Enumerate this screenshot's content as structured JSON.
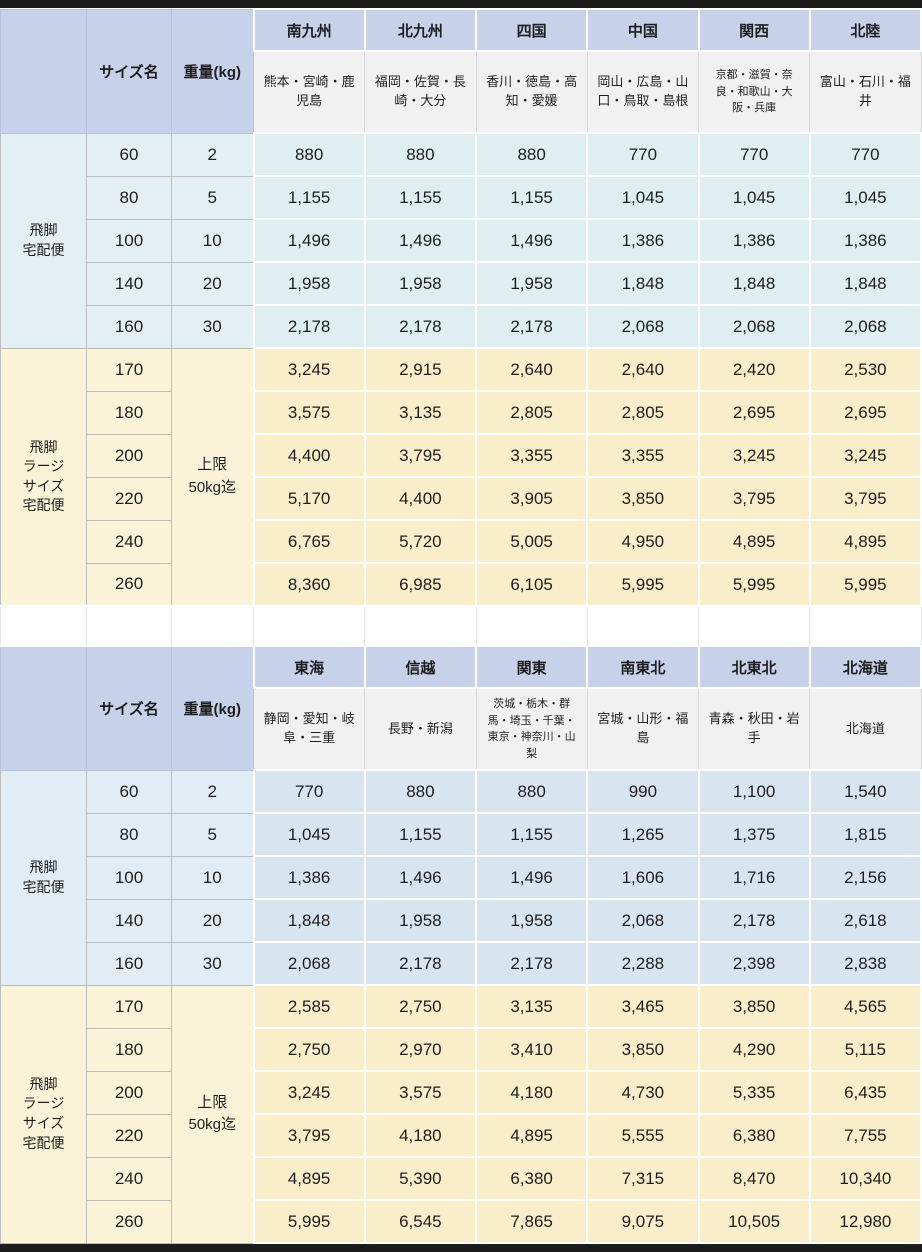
{
  "page": {
    "top_bar_color": "#1b1b1b",
    "bottom_bar_color": "#1b1b1b",
    "header_bg": "#c7d1ea",
    "prefecture_bg": "#f1f1f1"
  },
  "column_headers": {
    "size_label": "サイズ名",
    "weight_label": "重量(kg)"
  },
  "tables": [
    {
      "regions": [
        {
          "name": "南九州",
          "prefectures": "熊本・宮崎・鹿児島"
        },
        {
          "name": "北九州",
          "prefectures": "福岡・佐賀・長崎・大分"
        },
        {
          "name": "四国",
          "prefectures": "香川・徳島・高知・愛媛"
        },
        {
          "name": "中国",
          "prefectures": "岡山・広島・山口・鳥取・島根"
        },
        {
          "name": "関西",
          "prefectures": "京都・滋賀・奈良・和歌山・大阪・兵庫"
        },
        {
          "name": "北陸",
          "prefectures": "富山・石川・福井"
        }
      ],
      "groups": [
        {
          "service": "飛脚\n宅配便",
          "left_bg": "#e4eff4",
          "value_bg": "#deeef1",
          "rows": [
            {
              "size": "60",
              "weight": "2",
              "values": [
                "880",
                "880",
                "880",
                "770",
                "770",
                "770"
              ]
            },
            {
              "size": "80",
              "weight": "5",
              "values": [
                "1,155",
                "1,155",
                "1,155",
                "1,045",
                "1,045",
                "1,045"
              ]
            },
            {
              "size": "100",
              "weight": "10",
              "values": [
                "1,496",
                "1,496",
                "1,496",
                "1,386",
                "1,386",
                "1,386"
              ]
            },
            {
              "size": "140",
              "weight": "20",
              "values": [
                "1,958",
                "1,958",
                "1,958",
                "1,848",
                "1,848",
                "1,848"
              ]
            },
            {
              "size": "160",
              "weight": "30",
              "values": [
                "2,178",
                "2,178",
                "2,178",
                "2,068",
                "2,068",
                "2,068"
              ]
            }
          ]
        },
        {
          "service": "飛脚\nラージ\nサイズ\n宅配便",
          "weight_merged": "上限\n50kg迄",
          "left_bg": "#fbf3d8",
          "value_bg": "#f9eec9",
          "rows": [
            {
              "size": "170",
              "values": [
                "3,245",
                "2,915",
                "2,640",
                "2,640",
                "2,420",
                "2,530"
              ]
            },
            {
              "size": "180",
              "values": [
                "3,575",
                "3,135",
                "2,805",
                "2,805",
                "2,695",
                "2,695"
              ]
            },
            {
              "size": "200",
              "values": [
                "4,400",
                "3,795",
                "3,355",
                "3,355",
                "3,245",
                "3,245"
              ]
            },
            {
              "size": "220",
              "values": [
                "5,170",
                "4,400",
                "3,905",
                "3,850",
                "3,795",
                "3,795"
              ]
            },
            {
              "size": "240",
              "values": [
                "6,765",
                "5,720",
                "5,005",
                "4,950",
                "4,895",
                "4,895"
              ]
            },
            {
              "size": "260",
              "values": [
                "8,360",
                "6,985",
                "6,105",
                "5,995",
                "5,995",
                "5,995"
              ]
            }
          ]
        }
      ]
    },
    {
      "regions": [
        {
          "name": "東海",
          "prefectures": "静岡・愛知・岐阜・三重"
        },
        {
          "name": "信越",
          "prefectures": "長野・新潟"
        },
        {
          "name": "関東",
          "prefectures": "茨城・栃木・群馬・埼玉・千葉・東京・神奈川・山梨"
        },
        {
          "name": "南東北",
          "prefectures": "宮城・山形・福島"
        },
        {
          "name": "北東北",
          "prefectures": "青森・秋田・岩手"
        },
        {
          "name": "北海道",
          "prefectures": "北海道"
        }
      ],
      "groups": [
        {
          "service": "飛脚\n宅配便",
          "left_bg": "#e2ecf5",
          "value_bg": "#d9e4f1",
          "rows": [
            {
              "size": "60",
              "weight": "2",
              "values": [
                "770",
                "880",
                "880",
                "990",
                "1,100",
                "1,540"
              ]
            },
            {
              "size": "80",
              "weight": "5",
              "values": [
                "1,045",
                "1,155",
                "1,155",
                "1,265",
                "1,375",
                "1,815"
              ]
            },
            {
              "size": "100",
              "weight": "10",
              "values": [
                "1,386",
                "1,496",
                "1,496",
                "1,606",
                "1,716",
                "2,156"
              ]
            },
            {
              "size": "140",
              "weight": "20",
              "values": [
                "1,848",
                "1,958",
                "1,958",
                "2,068",
                "2,178",
                "2,618"
              ]
            },
            {
              "size": "160",
              "weight": "30",
              "values": [
                "2,068",
                "2,178",
                "2,178",
                "2,288",
                "2,398",
                "2,838"
              ]
            }
          ]
        },
        {
          "service": "飛脚\nラージ\nサイズ\n宅配便",
          "weight_merged": "上限\n50kg迄",
          "left_bg": "#fbf3d8",
          "value_bg": "#f9eec9",
          "rows": [
            {
              "size": "170",
              "values": [
                "2,585",
                "2,750",
                "3,135",
                "3,465",
                "3,850",
                "4,565"
              ]
            },
            {
              "size": "180",
              "values": [
                "2,750",
                "2,970",
                "3,410",
                "3,850",
                "4,290",
                "5,115"
              ]
            },
            {
              "size": "200",
              "values": [
                "3,245",
                "3,575",
                "4,180",
                "4,730",
                "5,335",
                "6,435"
              ]
            },
            {
              "size": "220",
              "values": [
                "3,795",
                "4,180",
                "4,895",
                "5,555",
                "6,380",
                "7,755"
              ]
            },
            {
              "size": "240",
              "values": [
                "4,895",
                "5,390",
                "6,380",
                "7,315",
                "8,470",
                "10,340"
              ]
            },
            {
              "size": "260",
              "values": [
                "5,995",
                "6,545",
                "7,865",
                "9,075",
                "10,505",
                "12,980"
              ]
            }
          ]
        }
      ]
    }
  ]
}
